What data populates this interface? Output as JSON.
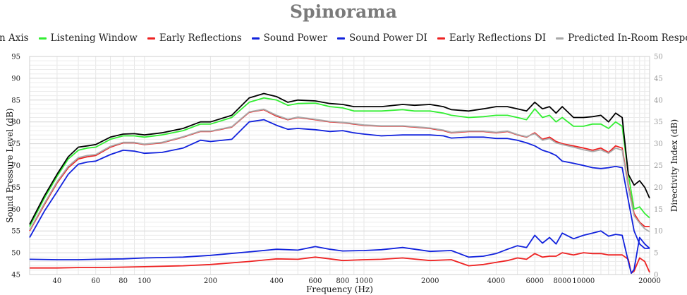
{
  "chart_data": {
    "type": "line",
    "title": "Spinorama",
    "xlabel": "Frequency (Hz)",
    "ylabel": "Sound Pressure Level (dB)",
    "y2label": "Directivity Index (dB)",
    "x_scale": "log",
    "xlim": [
      30,
      20000
    ],
    "ylim": [
      45,
      95
    ],
    "y2lim": [
      0,
      50
    ],
    "x_ticks": [
      40,
      60,
      80,
      100,
      200,
      400,
      600,
      800,
      1000,
      2000,
      4000,
      6000,
      8000,
      10000,
      20000
    ],
    "y_ticks": [
      45,
      50,
      55,
      60,
      65,
      70,
      75,
      80,
      85,
      90,
      95
    ],
    "y2_ticks": [
      0,
      5,
      10,
      15,
      20,
      25,
      30,
      35,
      40,
      45,
      50
    ],
    "grid": true,
    "legend_position": "top",
    "series": [
      {
        "name": "On Axis",
        "axis": "left",
        "color": "#000000",
        "x": [
          30,
          35,
          40,
          45,
          50,
          55,
          60,
          70,
          80,
          90,
          100,
          120,
          150,
          180,
          200,
          250,
          300,
          350,
          400,
          450,
          500,
          600,
          700,
          800,
          900,
          1000,
          1200,
          1500,
          1700,
          2000,
          2300,
          2500,
          3000,
          3500,
          4000,
          4500,
          5000,
          5500,
          6000,
          6500,
          7000,
          7500,
          8000,
          9000,
          10000,
          11000,
          12000,
          13000,
          14000,
          15000,
          16000,
          17000,
          18000,
          19000,
          20000
        ],
        "y": [
          56.5,
          63,
          68,
          72,
          74.2,
          74.5,
          74.8,
          76.5,
          77.2,
          77.3,
          77,
          77.5,
          78.5,
          80,
          80,
          81.5,
          85.5,
          86.5,
          85.8,
          84.5,
          85,
          84.8,
          84.2,
          84,
          83.5,
          83.5,
          83.5,
          84,
          83.8,
          84,
          83.5,
          82.8,
          82.5,
          83,
          83.5,
          83.5,
          83,
          82.5,
          84.5,
          83,
          83.5,
          82,
          83.5,
          81,
          81,
          81.2,
          81.5,
          80,
          82,
          81,
          68,
          65.5,
          66.5,
          65,
          62.5
        ]
      },
      {
        "name": "Listening Window",
        "axis": "left",
        "color": "#33ee33",
        "x": [
          30,
          35,
          40,
          45,
          50,
          55,
          60,
          70,
          80,
          90,
          100,
          120,
          150,
          180,
          200,
          250,
          300,
          350,
          400,
          450,
          500,
          600,
          700,
          800,
          900,
          1000,
          1200,
          1500,
          1700,
          2000,
          2300,
          2500,
          3000,
          3500,
          4000,
          4500,
          5000,
          5500,
          6000,
          6500,
          7000,
          7500,
          8000,
          9000,
          10000,
          11000,
          12000,
          13000,
          14000,
          15000,
          16000,
          17000,
          18000,
          19000,
          20000
        ],
        "y": [
          56,
          62.5,
          67.5,
          71.5,
          73.5,
          74,
          74.2,
          76,
          76.8,
          76.8,
          76.5,
          77,
          78,
          79.5,
          79.5,
          81,
          84.5,
          85.5,
          85,
          83.8,
          84.2,
          84.3,
          83.5,
          83.2,
          82.5,
          82.5,
          82.5,
          82.8,
          82.5,
          82.5,
          82,
          81.5,
          81,
          81.2,
          81.5,
          81.5,
          81,
          80.5,
          83,
          81,
          81.5,
          80,
          81,
          79,
          79,
          79.5,
          79.5,
          78.5,
          80,
          79,
          68,
          60,
          60.5,
          59,
          58
        ]
      },
      {
        "name": "Early Reflections",
        "axis": "left",
        "color": "#ee2222",
        "x": [
          30,
          35,
          40,
          45,
          50,
          55,
          60,
          70,
          80,
          90,
          100,
          120,
          150,
          180,
          200,
          250,
          300,
          350,
          400,
          450,
          500,
          600,
          700,
          800,
          900,
          1000,
          1200,
          1500,
          1700,
          2000,
          2300,
          2500,
          3000,
          3500,
          4000,
          4500,
          5000,
          5500,
          6000,
          6500,
          7000,
          7500,
          8000,
          9000,
          10000,
          11000,
          12000,
          13000,
          14000,
          15000,
          16000,
          17000,
          18000,
          19000,
          20000
        ],
        "y": [
          55,
          61,
          66,
          69.5,
          71.5,
          72,
          72.3,
          74.2,
          75.2,
          75.2,
          74.8,
          75.2,
          76.5,
          77.8,
          77.8,
          78.8,
          82.2,
          82.8,
          81.3,
          80.5,
          81,
          80.5,
          80,
          79.8,
          79.5,
          79.2,
          79,
          79,
          78.8,
          78.5,
          78,
          77.5,
          77.8,
          77.8,
          77.5,
          77.8,
          77,
          76.5,
          77.5,
          76,
          76.5,
          75.5,
          75,
          74.5,
          74,
          73.5,
          74,
          73,
          74.5,
          74,
          65.5,
          59,
          57,
          56,
          56
        ]
      },
      {
        "name": "Sound Power",
        "axis": "left",
        "color": "#1122dd",
        "x": [
          30,
          35,
          40,
          45,
          50,
          55,
          60,
          70,
          80,
          90,
          100,
          120,
          150,
          180,
          200,
          250,
          300,
          350,
          400,
          450,
          500,
          600,
          700,
          800,
          900,
          1000,
          1200,
          1500,
          1700,
          2000,
          2300,
          2500,
          3000,
          3500,
          4000,
          4500,
          5000,
          5500,
          6000,
          6500,
          7000,
          7500,
          8000,
          9000,
          10000,
          11000,
          12000,
          13000,
          14000,
          15000,
          16000,
          17000,
          18000,
          19000,
          20000
        ],
        "y": [
          53.5,
          59.5,
          64,
          68,
          70.3,
          70.8,
          71,
          72.5,
          73.5,
          73.3,
          72.8,
          73,
          74,
          75.8,
          75.5,
          76,
          80,
          80.5,
          79.2,
          78.3,
          78.5,
          78.2,
          77.8,
          78,
          77.5,
          77.2,
          76.8,
          77,
          77,
          77,
          76.8,
          76.3,
          76.5,
          76.5,
          76.2,
          76.2,
          75.8,
          75.2,
          74.5,
          73.5,
          73,
          72.3,
          71,
          70.5,
          70,
          69.5,
          69.3,
          69.5,
          69.8,
          69.5,
          62,
          55,
          52,
          51,
          51
        ]
      },
      {
        "name": "Sound Power DI",
        "axis": "right",
        "color": "#1122dd",
        "x": [
          30,
          40,
          50,
          60,
          80,
          100,
          150,
          200,
          300,
          400,
          500,
          600,
          700,
          800,
          1000,
          1200,
          1500,
          2000,
          2500,
          3000,
          3500,
          4000,
          4500,
          5000,
          5500,
          6000,
          6500,
          7000,
          7500,
          8000,
          9000,
          10000,
          11000,
          12000,
          13000,
          14000,
          15000,
          16000,
          16500,
          17000,
          18000,
          19000,
          20000
        ],
        "y": [
          3.5,
          3.4,
          3.4,
          3.5,
          3.6,
          3.8,
          4,
          4.4,
          5.2,
          5.8,
          5.6,
          6.4,
          5.8,
          5.4,
          5.5,
          5.7,
          6.2,
          5.3,
          5.5,
          4,
          4.2,
          4.8,
          5.8,
          6.6,
          6.2,
          9,
          7.2,
          8.5,
          7,
          9.5,
          8.2,
          9,
          9.5,
          10,
          8.8,
          9.2,
          9,
          3,
          0.3,
          1.2,
          8.5,
          7,
          6
        ]
      },
      {
        "name": "Early Reflections DI",
        "axis": "right",
        "color": "#ee2222",
        "x": [
          30,
          40,
          50,
          60,
          80,
          100,
          150,
          200,
          300,
          400,
          500,
          600,
          700,
          800,
          1000,
          1200,
          1500,
          2000,
          2500,
          3000,
          3500,
          4000,
          4500,
          5000,
          5500,
          6000,
          6500,
          7000,
          7500,
          8000,
          9000,
          10000,
          11000,
          12000,
          13000,
          14000,
          15000,
          16000,
          16500,
          17000,
          18000,
          19000,
          20000
        ],
        "y": [
          1.5,
          1.5,
          1.6,
          1.6,
          1.7,
          1.8,
          2,
          2.3,
          3,
          3.6,
          3.5,
          4,
          3.6,
          3.2,
          3.4,
          3.5,
          3.8,
          3.2,
          3.4,
          2,
          2.3,
          2.8,
          3.2,
          3.8,
          3.5,
          4.8,
          4,
          4.2,
          4.2,
          5,
          4.5,
          5,
          4.8,
          4.8,
          4.5,
          4.5,
          4.5,
          3.5,
          0.3,
          0.8,
          3.8,
          3,
          0.5
        ]
      },
      {
        "name": "Predicted In-Room Response",
        "axis": "left",
        "color": "#a9a9a9",
        "x": [
          30,
          35,
          40,
          45,
          50,
          55,
          60,
          70,
          80,
          90,
          100,
          120,
          150,
          180,
          200,
          250,
          300,
          350,
          400,
          450,
          500,
          600,
          700,
          800,
          900,
          1000,
          1200,
          1500,
          1700,
          2000,
          2300,
          2500,
          3000,
          3500,
          4000,
          4500,
          5000,
          5500,
          6000,
          6500,
          7000,
          7500,
          8000,
          9000,
          10000,
          11000,
          12000,
          13000,
          14000,
          15000,
          16000,
          17000,
          18000,
          19000,
          20000
        ],
        "y": [
          55.2,
          61.3,
          66.3,
          69.8,
          71.8,
          72.3,
          72.5,
          74.4,
          75.3,
          75.3,
          74.9,
          75.3,
          76.6,
          77.9,
          77.9,
          78.9,
          82.3,
          82.9,
          81.5,
          80.6,
          81.1,
          80.6,
          80.1,
          79.9,
          79.6,
          79.3,
          79.1,
          79.1,
          78.9,
          78.6,
          78.1,
          77.6,
          77.9,
          77.9,
          77.6,
          77.9,
          77.1,
          76.6,
          77.3,
          75.8,
          76.2,
          75.2,
          74.8,
          74.2,
          73.6,
          73.2,
          73.6,
          72.8,
          74,
          73.5,
          65,
          58.5,
          56.8,
          55.5,
          54.8
        ]
      }
    ]
  }
}
